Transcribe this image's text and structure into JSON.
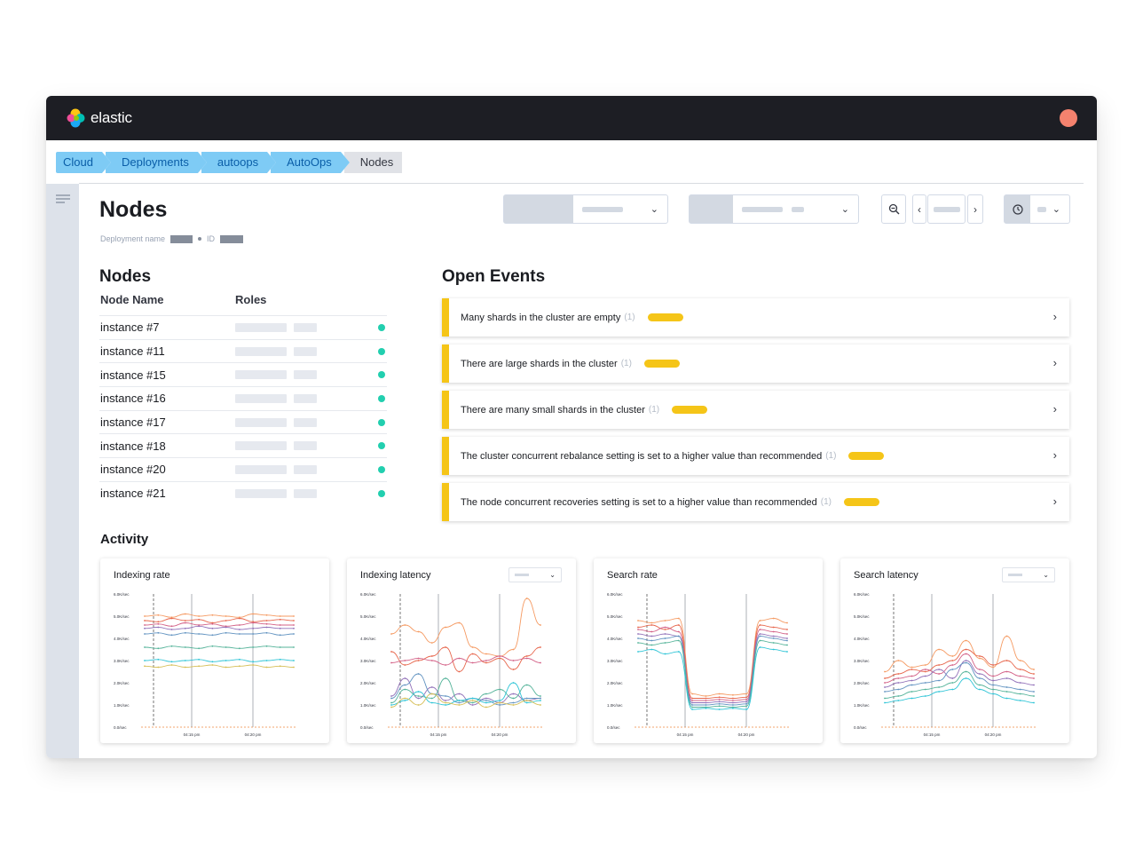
{
  "app": {
    "brand": "elastic"
  },
  "breadcrumbs": [
    "Cloud",
    "Deployments",
    "autoops",
    "AutoOps",
    "Nodes"
  ],
  "page": {
    "title": "Nodes",
    "meta_deployment_label": "Deployment name",
    "meta_id_label": "ID"
  },
  "nodes": {
    "title": "Nodes",
    "col_name": "Node Name",
    "col_roles": "Roles",
    "rows": [
      "instance #7",
      "instance #11",
      "instance #15",
      "instance #16",
      "instance #17",
      "instance #18",
      "instance #20",
      "instance #21"
    ]
  },
  "events": {
    "title": "Open Events",
    "items": [
      {
        "text": "Many shards in the cluster are empty",
        "count": "(1)"
      },
      {
        "text": "There are large shards in the cluster",
        "count": "(1)"
      },
      {
        "text": "There are many small shards in the cluster",
        "count": "(1)"
      },
      {
        "text": "The cluster concurrent rebalance setting is set to a higher value than recommended",
        "count": "(1)"
      },
      {
        "text": "The node concurrent recoveries setting is set to a higher value than recommended",
        "count": "(1)"
      }
    ]
  },
  "activity": {
    "title": "Activity",
    "charts": [
      {
        "title": "Indexing rate",
        "has_select": false
      },
      {
        "title": "Indexing latency",
        "has_select": true
      },
      {
        "title": "Search rate",
        "has_select": false
      },
      {
        "title": "Search latency",
        "has_select": true
      }
    ],
    "y_ticks": [
      "6.0K/sec",
      "5.0K/sec",
      "4.0K/sec",
      "3.0K/sec",
      "2.0K/sec",
      "1.0K/sec",
      "0.0/sec"
    ],
    "x_ticks": [
      "04:15 pm",
      "04:20 pm"
    ]
  },
  "colors": {
    "topbar": "#1d1e24",
    "breadcrumb": "#7ecbf5",
    "event_accent": "#f5c518",
    "status_ok": "#22cfaf",
    "series": [
      "#f59a62",
      "#e7664c",
      "#d36086",
      "#9170b8",
      "#6092c0",
      "#54b399",
      "#2ec4d6",
      "#d6bf57"
    ]
  },
  "chart_data": [
    {
      "type": "line",
      "title": "Indexing rate",
      "ylim": [
        0,
        6000
      ],
      "yunit": "/sec",
      "series": [
        {
          "values": [
            5000,
            5050,
            4950,
            5100,
            5000,
            5050,
            5000,
            4950,
            5100,
            5050,
            5000,
            5000
          ]
        },
        {
          "values": [
            4800,
            4750,
            4900,
            4800,
            4850,
            4700,
            4800,
            4900,
            4750,
            4800,
            4850,
            4800
          ]
        },
        {
          "values": [
            4600,
            4650,
            4550,
            4700,
            4600,
            4650,
            4550,
            4600,
            4700,
            4650,
            4600,
            4600
          ]
        },
        {
          "values": [
            4450,
            4500,
            4400,
            4450,
            4550,
            4450,
            4500,
            4400,
            4450,
            4500,
            4450,
            4450
          ]
        },
        {
          "values": [
            4200,
            4250,
            4150,
            4250,
            4200,
            4150,
            4250,
            4200,
            4200,
            4250,
            4150,
            4200
          ]
        },
        {
          "values": [
            3600,
            3550,
            3650,
            3600,
            3550,
            3650,
            3600,
            3550,
            3600,
            3650,
            3600,
            3600
          ]
        },
        {
          "values": [
            3000,
            3050,
            2950,
            3000,
            3050,
            2950,
            3000,
            3050,
            2950,
            3000,
            3050,
            3000
          ]
        },
        {
          "values": [
            2750,
            2700,
            2800,
            2700,
            2750,
            2800,
            2700,
            2750,
            2800,
            2700,
            2750,
            2700
          ]
        }
      ]
    },
    {
      "type": "line",
      "title": "Indexing latency",
      "ylim": [
        0,
        6000
      ],
      "yunit": "/sec",
      "series": [
        {
          "values": [
            4200,
            4600,
            4300,
            3800,
            4500,
            4700,
            3600,
            3300,
            3200,
            3500,
            5800,
            4600
          ]
        },
        {
          "values": [
            3400,
            2800,
            3000,
            3200,
            3600,
            2500,
            3300,
            2900,
            3100,
            2600,
            3200,
            3600
          ]
        },
        {
          "values": [
            2900,
            3000,
            3100,
            3000,
            2800,
            3100,
            2900,
            3000,
            3200,
            3000,
            3100,
            2900
          ]
        },
        {
          "values": [
            1400,
            2200,
            1300,
            1800,
            1200,
            1500,
            1000,
            1300,
            1100,
            1500,
            1200,
            1300
          ]
        },
        {
          "values": [
            1300,
            1900,
            2400,
            1500,
            1400,
            1100,
            1300,
            1200,
            1000,
            1100,
            1300,
            1300
          ]
        },
        {
          "values": [
            1100,
            1700,
            1400,
            1300,
            2200,
            1200,
            1100,
            1500,
            1700,
            1300,
            1900,
            1400
          ]
        },
        {
          "values": [
            1000,
            1200,
            1600,
            1100,
            1000,
            1200,
            1300,
            1100,
            1200,
            2000,
            1100,
            1200
          ]
        },
        {
          "values": [
            900,
            1300,
            1000,
            1500,
            1100,
            1000,
            1200,
            900,
            1100,
            1000,
            1200,
            1000
          ]
        }
      ]
    },
    {
      "type": "line",
      "title": "Search rate",
      "ylim": [
        0,
        6000
      ],
      "yunit": "/sec",
      "series": [
        {
          "values": [
            4800,
            4700,
            4800,
            4900,
            1500,
            1400,
            1500,
            1450,
            1500,
            4800,
            4900,
            4700
          ]
        },
        {
          "values": [
            4500,
            4600,
            4400,
            4600,
            1300,
            1300,
            1350,
            1300,
            1350,
            4600,
            4500,
            4400
          ]
        },
        {
          "values": [
            4400,
            4300,
            4500,
            4300,
            1200,
            1200,
            1250,
            1200,
            1250,
            4400,
            4300,
            4200
          ]
        },
        {
          "values": [
            4200,
            4100,
            4200,
            4100,
            1100,
            1100,
            1150,
            1100,
            1150,
            4200,
            4100,
            4000
          ]
        },
        {
          "values": [
            4000,
            3900,
            4000,
            4100,
            1000,
            1000,
            1050,
            1000,
            1050,
            4100,
            4000,
            3900
          ]
        },
        {
          "values": [
            3800,
            3700,
            3800,
            3900,
            900,
            900,
            950,
            900,
            950,
            3900,
            3800,
            3700
          ]
        },
        {
          "values": [
            3400,
            3500,
            3300,
            3400,
            800,
            850,
            800,
            850,
            800,
            3600,
            3500,
            3400
          ]
        }
      ]
    },
    {
      "type": "line",
      "title": "Search latency",
      "ylim": [
        0,
        6000
      ],
      "yunit": "/sec",
      "series": [
        {
          "values": [
            2500,
            3000,
            2700,
            2800,
            3500,
            3200,
            3900,
            3100,
            2700,
            4100,
            3000,
            2600
          ]
        },
        {
          "values": [
            2200,
            2400,
            2600,
            2500,
            2800,
            3000,
            3500,
            3200,
            2800,
            3000,
            2600,
            2400
          ]
        },
        {
          "values": [
            2000,
            2200,
            2300,
            2600,
            2400,
            2800,
            3300,
            2600,
            2300,
            2500,
            2300,
            2200
          ]
        },
        {
          "values": [
            1800,
            2000,
            2100,
            2300,
            2600,
            2200,
            3000,
            2400,
            2100,
            2200,
            2000,
            1900
          ]
        },
        {
          "values": [
            1600,
            1700,
            1900,
            2000,
            2100,
            2600,
            2900,
            2200,
            1900,
            1800,
            1700,
            1600
          ]
        },
        {
          "values": [
            1300,
            1400,
            1600,
            1700,
            1800,
            2000,
            2500,
            1900,
            1700,
            1600,
            1500,
            1400
          ]
        },
        {
          "values": [
            1100,
            1200,
            1300,
            1400,
            1600,
            1700,
            2200,
            1700,
            1500,
            1300,
            1200,
            1100
          ]
        }
      ]
    }
  ]
}
